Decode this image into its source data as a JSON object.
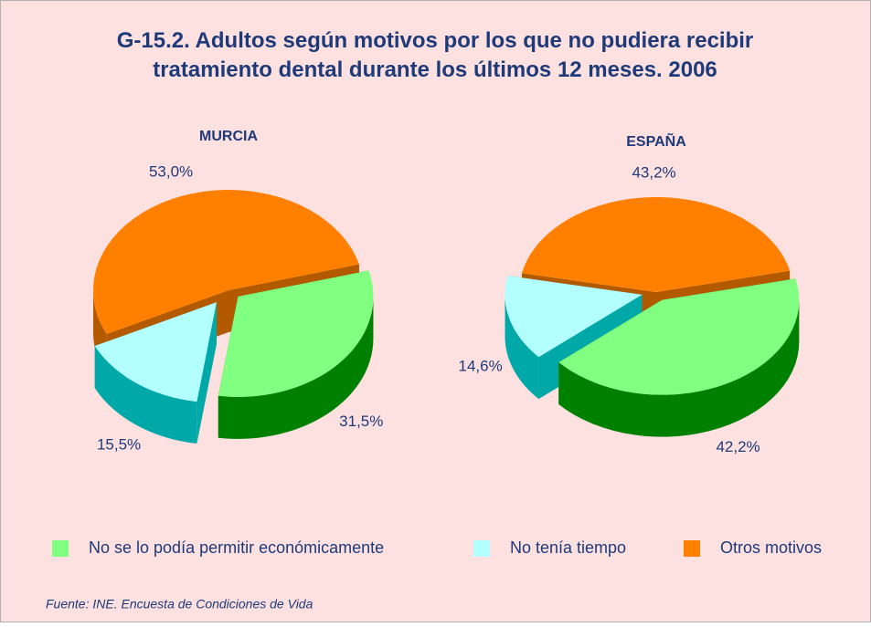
{
  "title": "G-15.2. Adultos según motivos por los que no pudiera recibir tratamiento dental durante los últimos 12 meses. 2006",
  "chart_data": [
    {
      "type": "pie",
      "title": "MURCIA",
      "categories": [
        "No se lo podía permitir económicamente",
        "No tenía tiempo",
        "Otros motivos"
      ],
      "values": [
        31.5,
        15.5,
        53.0
      ],
      "value_labels": [
        "31,5%",
        "15,5%",
        "53,0%"
      ],
      "colors": [
        "#80ff80",
        "#b3ffff",
        "#ff8000"
      ]
    },
    {
      "type": "pie",
      "title": "ESPAÑA",
      "categories": [
        "No se lo podía permitir económicamente",
        "No tenía tiempo",
        "Otros motivos"
      ],
      "values": [
        42.2,
        14.6,
        43.2
      ],
      "value_labels": [
        "42,2%",
        "14,6%",
        "43,2%"
      ],
      "colors": [
        "#80ff80",
        "#b3ffff",
        "#ff8000"
      ]
    }
  ],
  "source": "Fuente: INE. Encuesta de Condiciones de Vida"
}
